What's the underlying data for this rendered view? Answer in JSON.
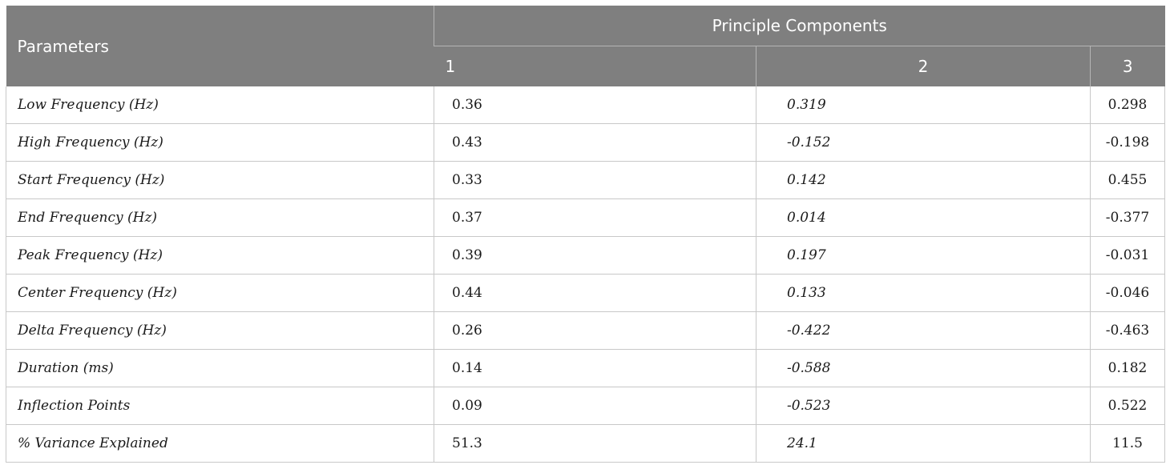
{
  "header": {
    "parameters_label": "Parameters",
    "group_label": "Principle Components",
    "components": [
      "1",
      "2",
      "3"
    ]
  },
  "rows": [
    {
      "parameter": "Low Frequency (Hz)",
      "pc1": "0.36",
      "pc2": "0.319",
      "pc3": "0.298"
    },
    {
      "parameter": "High Frequency (Hz)",
      "pc1": "0.43",
      "pc2": "-0.152",
      "pc3": "-0.198"
    },
    {
      "parameter": "Start Frequency (Hz)",
      "pc1": "0.33",
      "pc2": "0.142",
      "pc3": "0.455"
    },
    {
      "parameter": "End Frequency (Hz)",
      "pc1": "0.37",
      "pc2": "0.014",
      "pc3": "-0.377"
    },
    {
      "parameter": "Peak Frequency (Hz)",
      "pc1": "0.39",
      "pc2": "0.197",
      "pc3": "-0.031"
    },
    {
      "parameter": "Center Frequency (Hz)",
      "pc1": "0.44",
      "pc2": "0.133",
      "pc3": "-0.046"
    },
    {
      "parameter": "Delta Frequency (Hz)",
      "pc1": "0.26",
      "pc2": "-0.422",
      "pc3": "-0.463"
    },
    {
      "parameter": "Duration (ms)",
      "pc1": "0.14",
      "pc2": "-0.588",
      "pc3": "0.182"
    },
    {
      "parameter": "Inflection Points",
      "pc1": "0.09",
      "pc2": "-0.523",
      "pc3": "0.522"
    },
    {
      "parameter": "% Variance Explained",
      "pc1": "51.3",
      "pc2": "24.1",
      "pc3": "11.5"
    }
  ],
  "colors": {
    "header_bg": "#7f7f7f",
    "header_text": "#ffffff",
    "grid": "#c8c8c8"
  }
}
